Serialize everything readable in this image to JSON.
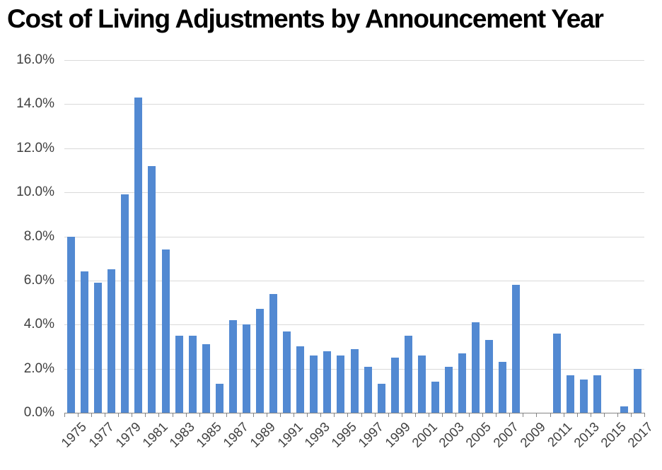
{
  "title": "Cost of Living Adjustments by Announcement Year",
  "chart_data": {
    "type": "bar",
    "title": "Cost of Living Adjustments by Announcement Year",
    "categories": [
      1975,
      1976,
      1977,
      1978,
      1979,
      1980,
      1981,
      1982,
      1983,
      1984,
      1985,
      1986,
      1987,
      1988,
      1989,
      1990,
      1991,
      1992,
      1993,
      1994,
      1995,
      1996,
      1997,
      1998,
      1999,
      2000,
      2001,
      2002,
      2003,
      2004,
      2005,
      2006,
      2007,
      2008,
      2009,
      2010,
      2011,
      2012,
      2013,
      2014,
      2015,
      2016,
      2017
    ],
    "values": [
      8.0,
      6.4,
      5.9,
      6.5,
      9.9,
      14.3,
      11.2,
      7.4,
      3.5,
      3.5,
      3.1,
      1.3,
      4.2,
      4.0,
      4.7,
      5.4,
      3.7,
      3.0,
      2.6,
      2.8,
      2.6,
      2.9,
      2.1,
      1.3,
      2.5,
      3.5,
      2.6,
      1.4,
      2.1,
      2.7,
      4.1,
      3.3,
      2.3,
      5.8,
      0.0,
      0.0,
      3.6,
      1.7,
      1.5,
      1.7,
      0.0,
      0.3,
      2.0
    ],
    "xlabel": "",
    "ylabel": "",
    "ylim": [
      0,
      16
    ],
    "ytick_step": 2,
    "ytick_labels": [
      "0.0%",
      "2.0%",
      "4.0%",
      "6.0%",
      "8.0%",
      "10.0%",
      "12.0%",
      "14.0%",
      "16.0%"
    ],
    "xtick_labels_shown": [
      "1975",
      "1977",
      "1979",
      "1981",
      "1983",
      "1985",
      "1987",
      "1989",
      "1991",
      "1993",
      "1995",
      "1997",
      "1999",
      "2001",
      "2003",
      "2005",
      "2007",
      "2009",
      "2011",
      "2013",
      "2015",
      "2017"
    ],
    "grid": "horizontal",
    "legend": "none"
  },
  "colors": {
    "bar": "#5289d2",
    "gridline": "#d9d9d9",
    "axis": "#858585",
    "label": "#404040",
    "title": "#000000",
    "background": "#ffffff"
  }
}
